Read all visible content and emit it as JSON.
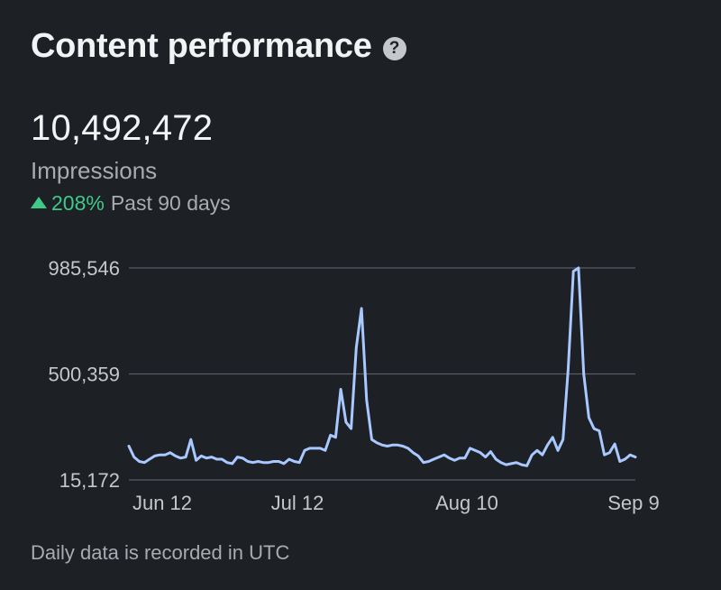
{
  "header": {
    "title": "Content performance",
    "help_icon": "help-circle-icon"
  },
  "summary": {
    "value": "10,492,472",
    "metric": "Impressions",
    "change_percent": "208%",
    "period": "Past 90 days",
    "change_direction_icon": "triangle-up-icon"
  },
  "colors": {
    "background": "#1d2025",
    "line": "#a8c8ff",
    "gridline": "#5a5e64",
    "positive": "#3ec98b"
  },
  "chart_data": {
    "type": "line",
    "series": [
      {
        "values": [
          170000,
          120000,
          100000,
          95000,
          110000,
          125000,
          130000,
          130000,
          140000,
          125000,
          115000,
          120000,
          200000,
          105000,
          125000,
          115000,
          120000,
          110000,
          110000,
          95000,
          90000,
          120000,
          115000,
          100000,
          95000,
          100000,
          95000,
          95000,
          100000,
          100000,
          90000,
          110000,
          100000,
          95000,
          150000,
          160000,
          160000,
          160000,
          150000,
          220000,
          210000,
          430000,
          280000,
          250000,
          620000,
          800000,
          380000,
          200000,
          185000,
          175000,
          170000,
          175000,
          175000,
          170000,
          160000,
          140000,
          125000,
          95000,
          100000,
          110000,
          120000,
          130000,
          115000,
          105000,
          115000,
          115000,
          160000,
          150000,
          140000,
          120000,
          145000,
          110000,
          95000,
          85000,
          90000,
          95000,
          85000,
          80000,
          130000,
          150000,
          130000,
          175000,
          210000,
          150000,
          200000,
          520000,
          970000,
          985546,
          500000,
          300000,
          250000,
          240000,
          130000,
          140000,
          180000,
          100000,
          110000,
          130000,
          120000
        ]
      }
    ],
    "x_ticks": [
      "Jun 12",
      "Jul 12",
      "Aug 10",
      "Sep 9"
    ],
    "y_ticks": [
      "985,546",
      "500,359",
      "15,172"
    ],
    "y_tick_values": [
      985546,
      500359,
      15172
    ],
    "ylim": [
      15172,
      985546
    ],
    "grid": true,
    "footnote": "Daily data is recorded in UTC"
  }
}
